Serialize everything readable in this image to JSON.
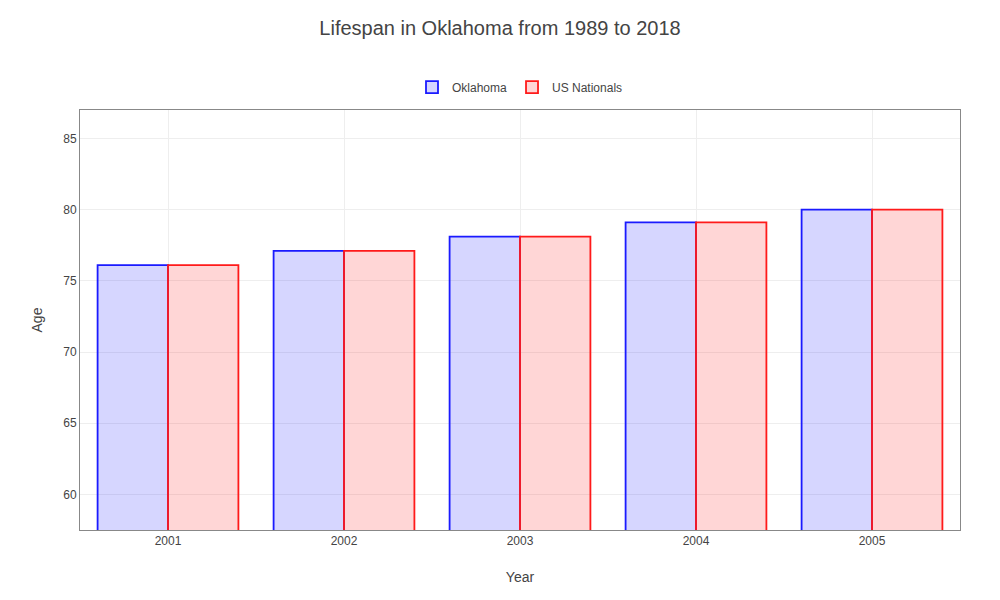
{
  "chart_data": {
    "type": "bar",
    "title": "Lifespan in Oklahoma from 1989 to 2018",
    "x_label": "Year",
    "y_label": "Age",
    "categories": [
      "2001",
      "2002",
      "2003",
      "2004",
      "2005"
    ],
    "series": [
      {
        "name": "Oklahoma",
        "color": "#1a1aff",
        "values": [
          76.1,
          77.1,
          78.1,
          79.1,
          80.0
        ]
      },
      {
        "name": "US Nationals",
        "color": "#ff1a1a",
        "values": [
          76.1,
          77.1,
          78.1,
          79.1,
          80.0
        ]
      }
    ],
    "ylim": [
      57.5,
      87
    ],
    "yticks": [
      60,
      65,
      70,
      75,
      80,
      85
    ],
    "grid": true,
    "legend": "top"
  }
}
